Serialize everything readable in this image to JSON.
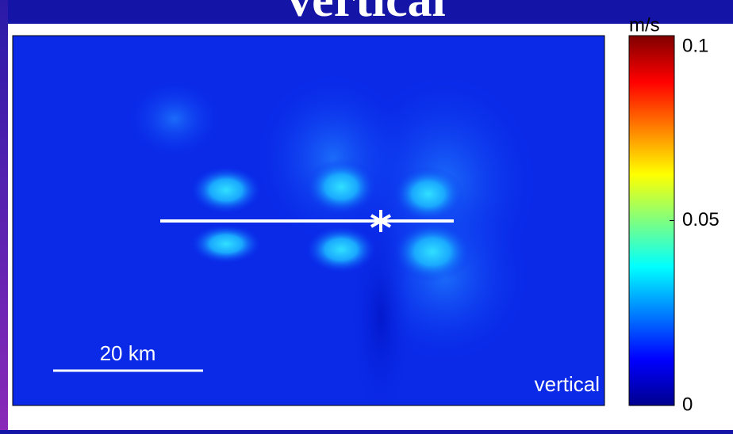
{
  "chart_data": {
    "type": "heatmap",
    "title": "vertical",
    "colorbar": {
      "label": "m/s",
      "lim": [
        0,
        0.1
      ],
      "ticks": [
        0,
        0.05,
        0.1
      ],
      "colormap": "jet"
    },
    "annotations": [
      "20 km",
      "vertical"
    ]
  }
}
